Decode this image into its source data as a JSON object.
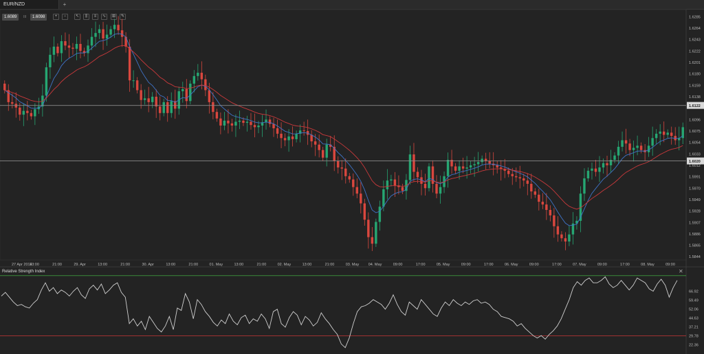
{
  "tab": {
    "title": "EUR/NZD",
    "add_label": "+"
  },
  "toolbar": {
    "bid": "1.6089",
    "separator": "III",
    "ask": "1.6098",
    "icons": [
      "zoom-in-icon",
      "zoom-out-icon",
      "cursor-icon",
      "candles-icon",
      "bars-icon",
      "line-icon",
      "indicators-icon",
      "draw-icon"
    ]
  },
  "colors": {
    "background": "#232323",
    "grid": "#2c2c2c",
    "bull": "#26a672",
    "bear": "#d9473e",
    "ema_fast": "#3f74c9",
    "ema_slow": "#c9393b",
    "hline": "#8a8a8a",
    "rsi_line": "#d0d0d0",
    "rsi_upper": "#3b8a3b",
    "rsi_lower": "#b23434"
  },
  "chart_data": [
    {
      "type": "candlestick",
      "symbol": "EUR/NZD",
      "ylim": [
        1.5838,
        1.6298
      ],
      "y_ticks": [
        "1.6285",
        "1.6264",
        "1.6243",
        "1.6222",
        "1.6201",
        "1.6180",
        "1.6159",
        "1.6138",
        "1.6096",
        "1.6075",
        "1.6054",
        "1.6033",
        "1.6012",
        "1.5991",
        "1.5970",
        "1.5949",
        "1.5928",
        "1.5907",
        "1.5886",
        "1.5865",
        "1.5844"
      ],
      "x_labels": [
        "27 Apr 2014",
        "13:00",
        "21:00",
        "29. Apr",
        "13:00",
        "21:00",
        "30. Apr",
        "13:00",
        "21:00",
        "01. May",
        "13:00",
        "21:00",
        "02. May",
        "13:00",
        "21:00",
        "03. May",
        "04. May",
        "09:00",
        "17:00",
        "05. May",
        "09:00",
        "17:00",
        "06. May",
        "09:00",
        "17:00",
        "07. May",
        "09:00",
        "17:00",
        "08. May",
        "09:00"
      ],
      "horizontal_lines": [
        {
          "label": "1.6122",
          "value": 1.6122
        },
        {
          "label": "1.6020",
          "value": 1.602
        }
      ],
      "closes": [
        1.615,
        1.6128,
        1.6125,
        1.6118,
        1.6105,
        1.6112,
        1.6108,
        1.6102,
        1.6115,
        1.612,
        1.614,
        1.6192,
        1.6215,
        1.623,
        1.6218,
        1.624,
        1.6232,
        1.6228,
        1.6226,
        1.6235,
        1.6222,
        1.6218,
        1.6232,
        1.6248,
        1.6255,
        1.6262,
        1.6245,
        1.6252,
        1.6262,
        1.627,
        1.626,
        1.6248,
        1.623,
        1.6168,
        1.6168,
        1.615,
        1.6132,
        1.6135,
        1.6128,
        1.6138,
        1.612,
        1.6108,
        1.6128,
        1.6108,
        1.613,
        1.6116,
        1.6148,
        1.6152,
        1.613,
        1.6162,
        1.6176,
        1.6182,
        1.617,
        1.615,
        1.6128,
        1.611,
        1.6098,
        1.6085,
        1.6094,
        1.6089,
        1.6085,
        1.6092,
        1.6094,
        1.609,
        1.6092,
        1.6086,
        1.6082,
        1.6085,
        1.6091,
        1.6096,
        1.6088,
        1.608,
        1.607,
        1.6062,
        1.6058,
        1.6065,
        1.606,
        1.607,
        1.6076,
        1.6075,
        1.6068,
        1.6056,
        1.605,
        1.604,
        1.6026,
        1.605,
        1.6046,
        1.602,
        1.6008,
        1.6006,
        1.5992,
        1.5986,
        1.5972,
        1.596,
        1.5942,
        1.5912,
        1.588,
        1.5868,
        1.5908,
        1.5936,
        1.5968,
        1.5984,
        1.5986,
        1.5975,
        1.5972,
        1.5965,
        1.5985,
        1.6032,
        1.6,
        1.599,
        1.5978,
        1.597,
        1.601,
        1.5978,
        1.596,
        1.5972,
        1.5992,
        1.6022,
        1.601,
        1.6002,
        1.601,
        1.6006,
        1.6008,
        1.6012,
        1.6014,
        1.6018,
        1.6024,
        1.602,
        1.6015,
        1.6012,
        1.6008,
        1.6005,
        1.6002,
        1.5996,
        1.5992,
        1.599,
        1.5988,
        1.5984,
        1.5978,
        1.5964,
        1.5958,
        1.5945,
        1.594,
        1.593,
        1.592,
        1.59,
        1.5885,
        1.5878,
        1.5872,
        1.5885,
        1.5905,
        1.591,
        1.596,
        1.5988,
        1.6002,
        1.6006,
        1.6,
        1.6008,
        1.6016,
        1.6012,
        1.6022,
        1.603,
        1.6046,
        1.6058,
        1.6052,
        1.604,
        1.6044,
        1.6048,
        1.604,
        1.6036,
        1.6048,
        1.6062,
        1.607,
        1.6074,
        1.6068,
        1.6072,
        1.6066,
        1.6058,
        1.6062,
        1.6082
      ],
      "series": [
        {
          "name": "",
          "kind": "ema_fast"
        },
        {
          "name": "",
          "kind": "ema_slow"
        }
      ]
    },
    {
      "type": "line",
      "title": "Relative Strength Index",
      "ylim": [
        19.8,
        81.0
      ],
      "y_ticks": [
        "66.92",
        "59.49",
        "52.06",
        "44.63",
        "37.21",
        "29.78",
        "22.36"
      ],
      "levels": [
        80,
        29.78
      ],
      "values": [
        63,
        66,
        62,
        58,
        55,
        56,
        54,
        53,
        57,
        60,
        68,
        74,
        67,
        70,
        65,
        68,
        66,
        63,
        67,
        70,
        64,
        61,
        69,
        72,
        68,
        73,
        65,
        68,
        72,
        74,
        66,
        62,
        40,
        44,
        38,
        42,
        35,
        46,
        41,
        36,
        33,
        38,
        46,
        35,
        53,
        51,
        65,
        58,
        44,
        60,
        56,
        50,
        46,
        41,
        38,
        43,
        40,
        48,
        42,
        39,
        45,
        47,
        40,
        44,
        42,
        48,
        44,
        36,
        50,
        52,
        40,
        37,
        45,
        50,
        47,
        39,
        46,
        43,
        38,
        41,
        49,
        44,
        40,
        35,
        31,
        23,
        20,
        28,
        40,
        50,
        54,
        55,
        57,
        60,
        58,
        56,
        52,
        57,
        64,
        56,
        50,
        47,
        58,
        55,
        52,
        60,
        56,
        52,
        48,
        46,
        53,
        58,
        55,
        60,
        57,
        55,
        58,
        56,
        59,
        60,
        57,
        58,
        56,
        52,
        50,
        46,
        45,
        44,
        42,
        38,
        40,
        36,
        33,
        30,
        28,
        30,
        27,
        31,
        34,
        38,
        44,
        52,
        60,
        70,
        75,
        72,
        76,
        78,
        74,
        74,
        76,
        79,
        73,
        70,
        72,
        76,
        72,
        68,
        72,
        78,
        76,
        74,
        69,
        67,
        73,
        77,
        72,
        62,
        70,
        76
      ]
    }
  ]
}
